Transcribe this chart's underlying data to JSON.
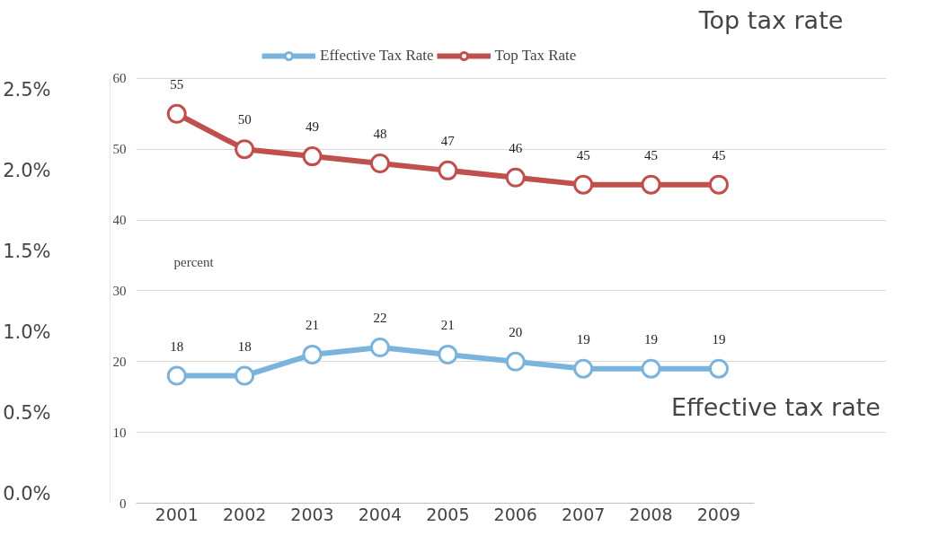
{
  "chart_data": {
    "type": "line",
    "ylabel": "percent",
    "categories": [
      "2001",
      "2002",
      "2003",
      "2004",
      "2005",
      "2006",
      "2007",
      "2008",
      "2009"
    ],
    "series": [
      {
        "name": "Effective Tax Rate",
        "color": "#7ab4dc",
        "values": [
          18,
          18,
          21,
          22,
          21,
          20,
          19,
          19,
          19
        ]
      },
      {
        "name": "Top Tax Rate",
        "color": "#c0504d",
        "values": [
          55,
          50,
          49,
          48,
          47,
          46,
          45,
          45,
          45
        ]
      }
    ],
    "ylim": [
      0,
      60
    ],
    "yticks": [
      0,
      10,
      20,
      30,
      40,
      50,
      60
    ],
    "y2lim": [
      -0.056,
      2.572
    ],
    "y2ticks": [
      {
        "value": 0,
        "label": "0.0%"
      },
      {
        "value": 0.5,
        "label": "0.5%"
      },
      {
        "value": 1,
        "label": "1.0%"
      },
      {
        "value": 1.5,
        "label": "1.5%"
      },
      {
        "value": 2,
        "label": "2.0%"
      },
      {
        "value": 2.5,
        "label": "2.5%"
      }
    ],
    "annotations": [
      "Top  tax rate",
      "Effective tax rate"
    ],
    "data_labels": true,
    "legend": "top",
    "marker": "circle",
    "line_style": "solid",
    "grid": "y"
  }
}
